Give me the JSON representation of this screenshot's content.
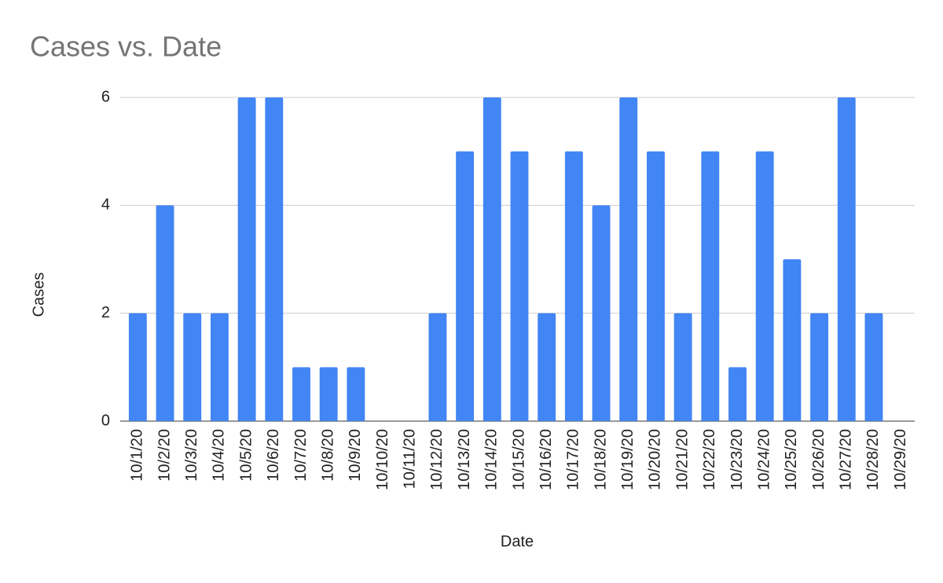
{
  "chart_data": {
    "type": "bar",
    "title": "Cases vs. Date",
    "x_label": "Date",
    "y_label": "Cases",
    "categories": [
      "10/1/20",
      "10/2/20",
      "10/3/20",
      "10/4/20",
      "10/5/20",
      "10/6/20",
      "10/7/20",
      "10/8/20",
      "10/9/20",
      "10/10/20",
      "10/11/20",
      "10/12/20",
      "10/13/20",
      "10/14/20",
      "10/15/20",
      "10/16/20",
      "10/17/20",
      "10/18/20",
      "10/19/20",
      "10/20/20",
      "10/21/20",
      "10/22/20",
      "10/23/20",
      "10/24/20",
      "10/25/20",
      "10/26/20",
      "10/27/20",
      "10/28/20",
      "10/29/20"
    ],
    "values": [
      2,
      4,
      2,
      2,
      6,
      6,
      1,
      1,
      1,
      0,
      0,
      2,
      5,
      6,
      5,
      2,
      5,
      4,
      6,
      5,
      2,
      5,
      1,
      5,
      3,
      2,
      6,
      2,
      0
    ],
    "color": "#4285f4",
    "ylim": [
      0,
      6
    ],
    "yticks": [
      0,
      2,
      4,
      6
    ],
    "grid": true
  }
}
